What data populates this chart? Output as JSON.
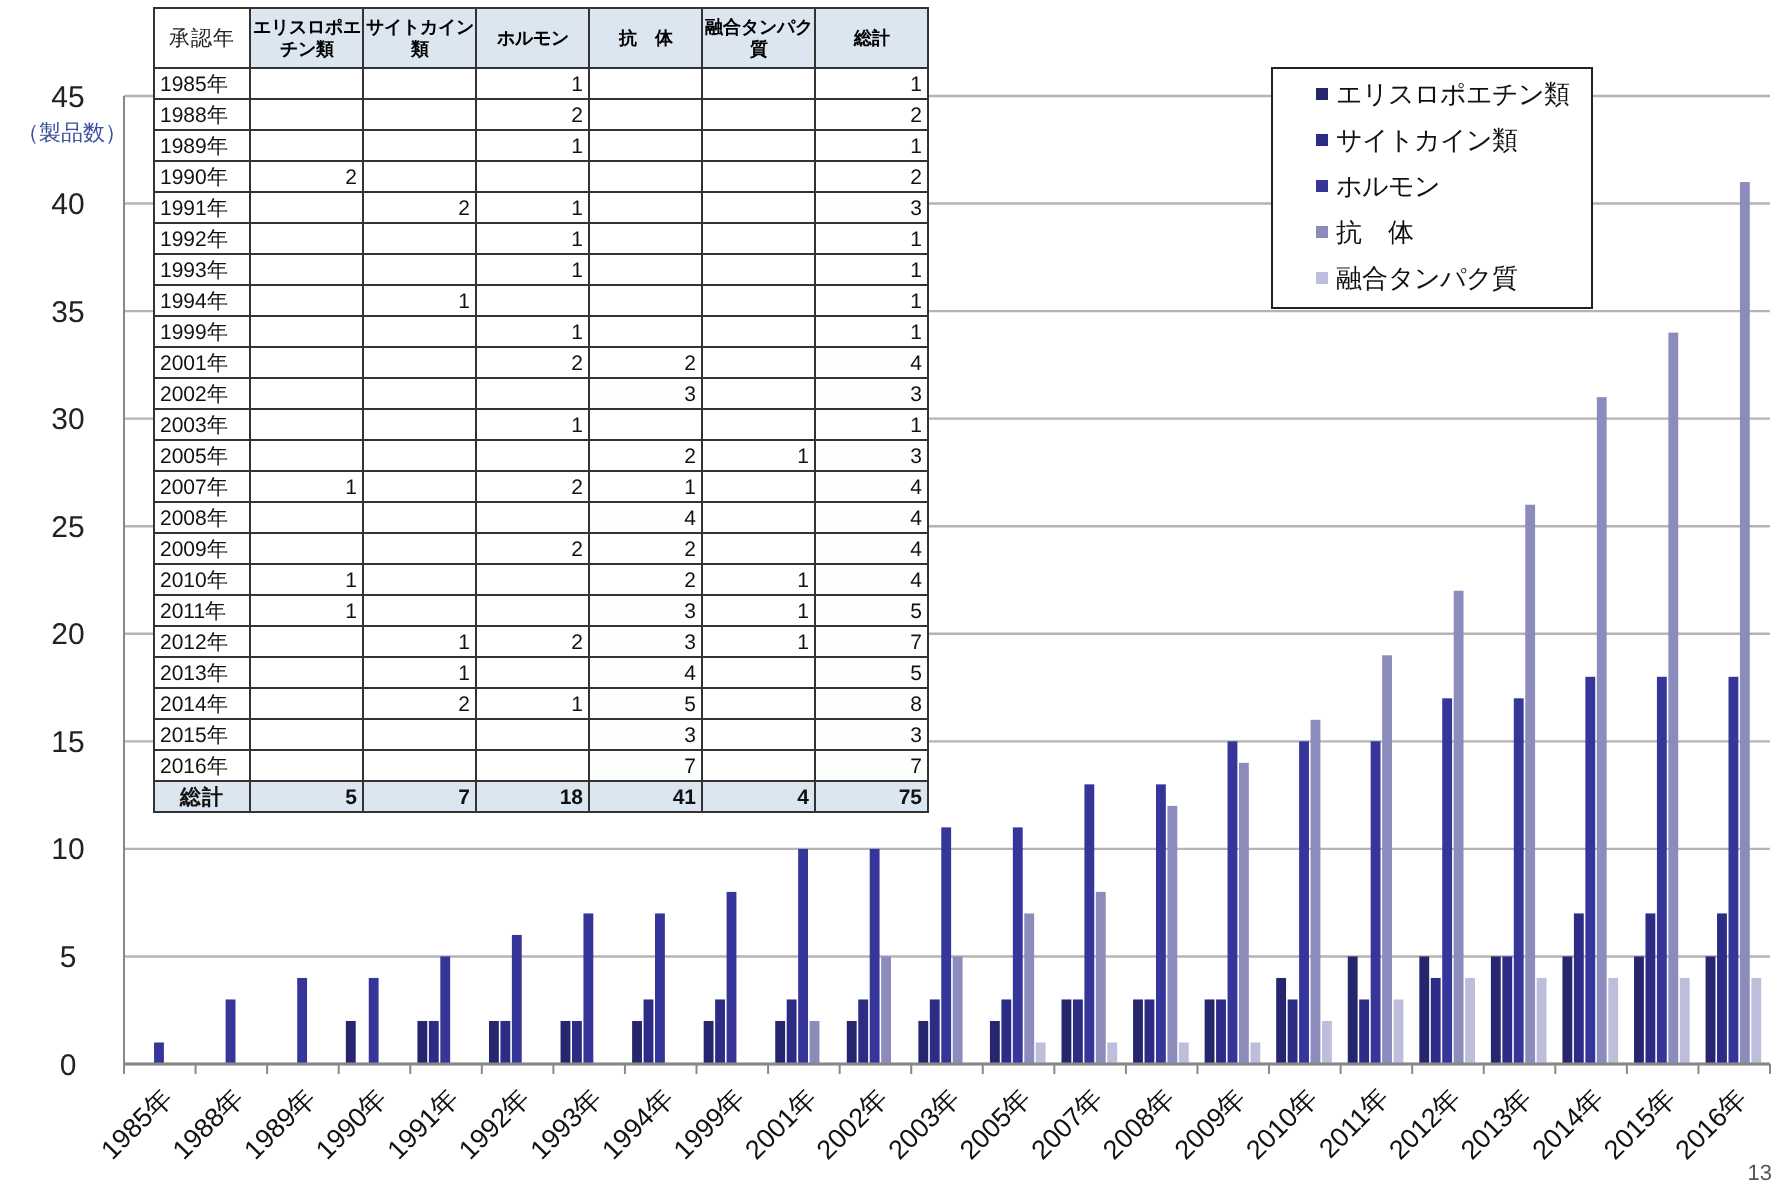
{
  "chart_data": [
    {
      "type": "bar",
      "ylabel": "（製品数）",
      "categories": [
        "1985年",
        "1988年",
        "1989年",
        "1990年",
        "1991年",
        "1992年",
        "1993年",
        "1994年",
        "1999年",
        "2001年",
        "2002年",
        "2003年",
        "2005年",
        "2007年",
        "2008年",
        "2009年",
        "2010年",
        "2011年",
        "2012年",
        "2013年",
        "2014年",
        "2015年",
        "2016年"
      ],
      "series": [
        {
          "name": "エリスロポエチン類",
          "color": "#26266e",
          "values": [
            0,
            0,
            0,
            2,
            2,
            2,
            2,
            2,
            2,
            2,
            2,
            2,
            2,
            3,
            3,
            3,
            4,
            5,
            5,
            5,
            5,
            5,
            5
          ]
        },
        {
          "name": "サイトカイン類",
          "color": "#2c2c86",
          "values": [
            0,
            0,
            0,
            0,
            2,
            2,
            2,
            3,
            3,
            3,
            3,
            3,
            3,
            3,
            3,
            3,
            3,
            3,
            4,
            5,
            7,
            7,
            7
          ]
        },
        {
          "name": "ホルモン",
          "color": "#36369a",
          "values": [
            1,
            3,
            4,
            4,
            5,
            6,
            7,
            7,
            8,
            10,
            10,
            11,
            11,
            13,
            13,
            15,
            15,
            15,
            17,
            17,
            18,
            18,
            18
          ]
        },
        {
          "name": "抗　体",
          "color": "#8c8cbc",
          "values": [
            0,
            0,
            0,
            0,
            0,
            0,
            0,
            0,
            0,
            2,
            5,
            5,
            7,
            8,
            12,
            14,
            16,
            19,
            22,
            26,
            31,
            34,
            41
          ]
        },
        {
          "name": "融合タンパク質",
          "color": "#bebedc",
          "values": [
            0,
            0,
            0,
            0,
            0,
            0,
            0,
            0,
            0,
            0,
            0,
            0,
            1,
            1,
            1,
            1,
            2,
            3,
            4,
            4,
            4,
            4,
            4
          ]
        }
      ],
      "ylim": [
        0,
        45
      ],
      "yticks": [
        0,
        5,
        10,
        15,
        20,
        25,
        30,
        35,
        40,
        45
      ],
      "grid": "y",
      "legend": "top right",
      "annotations": [
        "13"
      ]
    },
    {
      "type": "heatmap",
      "ylabel": "承認年",
      "categories": [
        "エリスロポエチン類",
        "サイトカイン類",
        "ホルモン",
        "抗　体",
        "融合タンパク質",
        "総計"
      ],
      "y_categories": [
        "1985年",
        "1988年",
        "1989年",
        "1990年",
        "1991年",
        "1992年",
        "1993年",
        "1994年",
        "1999年",
        "2001年",
        "2002年",
        "2003年",
        "2005年",
        "2007年",
        "2008年",
        "2009年",
        "2010年",
        "2011年",
        "2012年",
        "2013年",
        "2014年",
        "2015年",
        "2016年",
        "総計"
      ],
      "cells": [
        [
          null,
          null,
          1,
          null,
          null,
          1
        ],
        [
          null,
          null,
          2,
          null,
          null,
          2
        ],
        [
          null,
          null,
          1,
          null,
          null,
          1
        ],
        [
          2,
          null,
          null,
          null,
          null,
          2
        ],
        [
          null,
          2,
          1,
          null,
          null,
          3
        ],
        [
          null,
          null,
          1,
          null,
          null,
          1
        ],
        [
          null,
          null,
          1,
          null,
          null,
          1
        ],
        [
          null,
          1,
          null,
          null,
          null,
          1
        ],
        [
          null,
          null,
          1,
          null,
          null,
          1
        ],
        [
          null,
          null,
          2,
          2,
          null,
          4
        ],
        [
          null,
          null,
          null,
          3,
          null,
          3
        ],
        [
          null,
          null,
          1,
          null,
          null,
          1
        ],
        [
          null,
          null,
          null,
          2,
          1,
          3
        ],
        [
          1,
          null,
          2,
          1,
          null,
          4
        ],
        [
          null,
          null,
          null,
          4,
          null,
          4
        ],
        [
          null,
          null,
          2,
          2,
          null,
          4
        ],
        [
          1,
          null,
          null,
          2,
          1,
          4
        ],
        [
          1,
          null,
          null,
          3,
          1,
          5
        ],
        [
          null,
          1,
          2,
          3,
          1,
          7
        ],
        [
          null,
          1,
          null,
          4,
          null,
          5
        ],
        [
          null,
          2,
          1,
          5,
          null,
          8
        ],
        [
          null,
          null,
          null,
          3,
          null,
          3
        ],
        [
          null,
          null,
          null,
          7,
          null,
          7
        ],
        [
          5,
          7,
          18,
          41,
          4,
          75
        ]
      ],
      "cell_labels": [
        [
          null,
          null,
          "1",
          null,
          null,
          "1"
        ],
        [
          null,
          null,
          "2",
          null,
          null,
          "2"
        ],
        [
          null,
          null,
          "1",
          null,
          null,
          "1"
        ],
        [
          "2",
          null,
          null,
          null,
          null,
          "2"
        ],
        [
          null,
          "2",
          "1",
          null,
          null,
          "3"
        ],
        [
          null,
          null,
          "1",
          null,
          null,
          "1"
        ],
        [
          null,
          null,
          "1",
          null,
          null,
          "1"
        ],
        [
          null,
          "1",
          null,
          null,
          null,
          "1"
        ],
        [
          null,
          null,
          "1",
          null,
          null,
          "1"
        ],
        [
          null,
          null,
          "2",
          "2",
          null,
          "4"
        ],
        [
          null,
          null,
          null,
          "3",
          null,
          "3"
        ],
        [
          null,
          null,
          "1",
          null,
          null,
          "1"
        ],
        [
          null,
          null,
          null,
          "2",
          "1",
          "3"
        ],
        [
          "1",
          null,
          "2",
          "1",
          null,
          "4"
        ],
        [
          null,
          null,
          null,
          "4",
          null,
          "4"
        ],
        [
          null,
          null,
          "2",
          "2",
          null,
          "4"
        ],
        [
          "1",
          null,
          null,
          "2",
          "1",
          "4"
        ],
        [
          "1",
          null,
          null,
          "3",
          "1",
          "5"
        ],
        [
          null,
          "1",
          "2",
          "3",
          "1",
          "7"
        ],
        [
          null,
          "1",
          null,
          "4",
          null,
          "5"
        ],
        [
          null,
          "2",
          "1",
          "5",
          null,
          "8"
        ],
        [
          null,
          null,
          null,
          "3",
          null,
          "3"
        ],
        [
          null,
          null,
          null,
          "7",
          null,
          "7"
        ],
        [
          "5",
          "7",
          "18",
          "41",
          "4",
          "75"
        ]
      ]
    }
  ]
}
